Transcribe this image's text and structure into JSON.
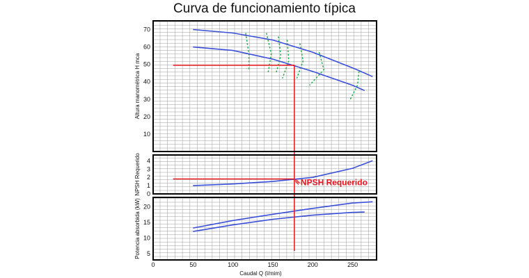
{
  "title": "Curva de funcionamiento típica",
  "colors": {
    "curve": "#3a4fd8",
    "operating": "#e8141b",
    "efficiency": "#22b04b",
    "grid": "#9a9a9a",
    "frame": "#000000"
  },
  "chart_data": [
    {
      "type": "line",
      "ylabel": "Altura manométrica H mca",
      "xlim": [
        0,
        280
      ],
      "ylim": [
        0,
        75
      ],
      "yticks": [
        10,
        20,
        30,
        40,
        50,
        60,
        70
      ],
      "grid": true,
      "series": [
        {
          "x": [
            50,
            100,
            150,
            200,
            250,
            275
          ],
          "values": [
            70,
            68,
            64,
            57,
            48,
            43
          ]
        },
        {
          "x": [
            50,
            100,
            150,
            200,
            250,
            265
          ],
          "values": [
            60,
            58,
            53,
            46,
            38,
            35
          ]
        }
      ],
      "efficiency_curves": [
        {
          "x": [
            116,
            120,
            120
          ],
          "values": [
            68,
            56,
            47
          ]
        },
        {
          "x": [
            142,
            148,
            144
          ],
          "values": [
            68,
            56,
            45
          ]
        },
        {
          "x": [
            157,
            160,
            154
          ],
          "values": [
            66,
            55,
            45
          ]
        },
        {
          "x": [
            168,
            170,
            162
          ],
          "values": [
            64,
            52,
            42
          ]
        },
        {
          "x": [
            184,
            188,
            180
          ],
          "values": [
            62,
            52,
            42
          ]
        },
        {
          "x": [
            208,
            214,
            196
          ],
          "values": [
            57,
            47,
            38
          ]
        },
        {
          "x": [
            258,
            256,
            246
          ],
          "values": [
            46,
            38,
            29
          ]
        }
      ],
      "operating_point": {
        "x": 177,
        "y": 49.5
      }
    },
    {
      "type": "line",
      "ylabel": "NPSH Requerido",
      "xlim": [
        0,
        280
      ],
      "ylim": [
        0,
        4.7
      ],
      "yticks": [
        0,
        1,
        2,
        3,
        4
      ],
      "grid": true,
      "series": [
        {
          "x": [
            50,
            100,
            150,
            200,
            250,
            275
          ],
          "values": [
            1.0,
            1.2,
            1.5,
            2.0,
            3.1,
            4.0
          ]
        }
      ],
      "operating_point": {
        "x": 177,
        "y": 1.8
      },
      "annotation": "NPSH Requerido"
    },
    {
      "type": "line",
      "ylabel": "Potencia absorbida (kW)",
      "xlabel": "Caudal Q  (l/mim)",
      "xlim": [
        0,
        280
      ],
      "ylim": [
        3,
        23
      ],
      "yticks": [
        5,
        10,
        15,
        20
      ],
      "xticks": [
        0,
        50,
        100,
        150,
        200,
        250
      ],
      "grid": true,
      "series": [
        {
          "x": [
            50,
            100,
            150,
            200,
            250,
            275
          ],
          "values": [
            13.2,
            15.6,
            17.6,
            19.5,
            21.2,
            21.6
          ]
        },
        {
          "x": [
            50,
            100,
            150,
            200,
            250,
            265
          ],
          "values": [
            12.1,
            14.2,
            16.0,
            17.3,
            18.2,
            18.3
          ]
        }
      ],
      "operating_point": {
        "x": 177
      }
    }
  ]
}
